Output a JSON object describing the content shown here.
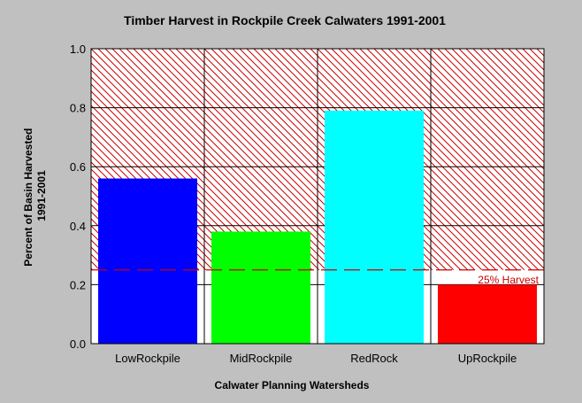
{
  "chart_data": {
    "type": "bar",
    "title": "Timber Harvest in Rockpile Creek Calwaters 1991-2001",
    "xlabel": "Calwater Planning Watersheds",
    "ylabel_lines": [
      "Percent of Basin Harvested",
      "1991-2001"
    ],
    "categories": [
      "LowRockpile",
      "MidRockpile",
      "RedRock",
      "UpRockpile"
    ],
    "values": [
      0.56,
      0.38,
      0.79,
      0.2
    ],
    "bar_colors": [
      "#0000ff",
      "#00ff00",
      "#00ffff",
      "#ff0000"
    ],
    "ylim": [
      0.0,
      1.0
    ],
    "yticks": [
      "0.0",
      "0.2",
      "0.4",
      "0.6",
      "0.8",
      "1.0"
    ],
    "grid": true,
    "threshold": {
      "value": 0.25,
      "label": "25% Harvest",
      "color": "#cc0000",
      "hatch_above": true
    }
  }
}
